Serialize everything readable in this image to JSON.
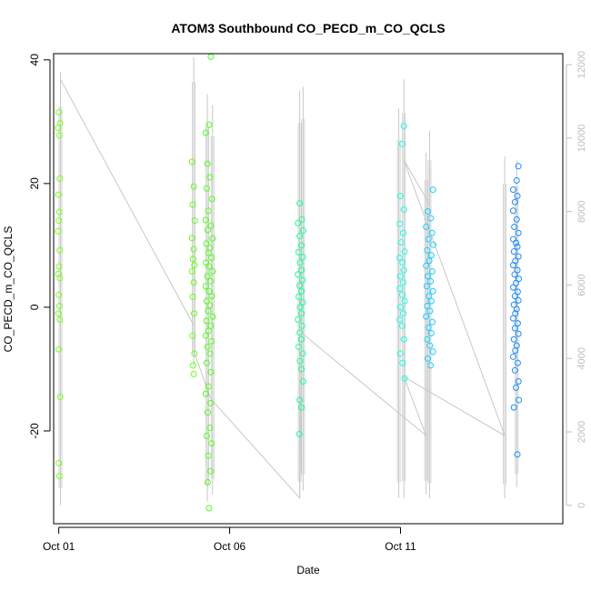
{
  "chart_data": {
    "type": "scatter",
    "title": "ATOM3 Southbound CO_PECD_m_CO_QCLS",
    "xlabel": "Date",
    "ylabel": "CO_PECD_m_CO_QCLS",
    "x_unit": "day of October",
    "xlim": [
      0.85,
      15.75
    ],
    "ylim": [
      -35,
      41
    ],
    "y2lim": [
      -500,
      12300
    ],
    "x_ticks": [
      {
        "x": 1,
        "label": "Oct 01"
      },
      {
        "x": 6,
        "label": "Oct 06"
      },
      {
        "x": 11,
        "label": "Oct 11"
      }
    ],
    "y_ticks": [
      {
        "y": -20,
        "label": "-20"
      },
      {
        "y": 0,
        "label": "0"
      },
      {
        "y": 20,
        "label": "20"
      },
      {
        "y": 40,
        "label": "40"
      }
    ],
    "y2_ticks": [
      {
        "y": 0,
        "label": "0"
      },
      {
        "y": 2000,
        "label": "2000"
      },
      {
        "y": 4000,
        "label": "4000"
      },
      {
        "y": 6000,
        "label": "6000"
      },
      {
        "y": 8000,
        "label": "8000"
      },
      {
        "y": 10000,
        "label": "10000"
      },
      {
        "y": 12000,
        "label": "12000"
      }
    ],
    "colors": {
      "axis": "#000000",
      "secondary_axis": "#bdbdbd",
      "altitude_trace": "#c8c8c8",
      "point_ramp": [
        "#7fff1a",
        "#33ff4d",
        "#1aff9a",
        "#1affe6",
        "#1acfff",
        "#1a8cff"
      ]
    },
    "altitude_trace": {
      "vertical_profiles": [
        {
          "x": 1.05,
          "y2_min": 0,
          "y2_max": 11800
        },
        {
          "x": 4.95,
          "y2_min": 3800,
          "y2_max": 12200
        },
        {
          "x": 5.35,
          "y2_min": 100,
          "y2_max": 11200
        },
        {
          "x": 5.5,
          "y2_min": 300,
          "y2_max": 10900
        },
        {
          "x": 8.05,
          "y2_min": 200,
          "y2_max": 11300
        },
        {
          "x": 8.15,
          "y2_min": 400,
          "y2_max": 11400
        },
        {
          "x": 10.95,
          "y2_min": 200,
          "y2_max": 10800
        },
        {
          "x": 11.1,
          "y2_min": 200,
          "y2_max": 11600
        },
        {
          "x": 11.75,
          "y2_min": 300,
          "y2_max": 9600
        },
        {
          "x": 11.85,
          "y2_min": 200,
          "y2_max": 10200
        },
        {
          "x": 14.05,
          "y2_min": 200,
          "y2_max": 9500
        },
        {
          "x": 14.4,
          "y2_min": 500,
          "y2_max": 9400
        }
      ],
      "transits": [
        [
          1.05,
          11600
        ],
        [
          4.95,
          4900
        ],
        [
          4.95,
          4200
        ],
        [
          5.45,
          2900
        ],
        [
          8.05,
          200
        ],
        [
          8.1,
          4700
        ],
        [
          11.75,
          1900
        ],
        [
          11.1,
          3500
        ],
        [
          14.05,
          1900
        ],
        [
          11.1,
          9400
        ],
        [
          11.85,
          8200
        ]
      ]
    },
    "series": [
      {
        "color": "#7fff1a",
        "points": [
          [
            1.0,
            31.5
          ],
          [
            1.04,
            29.8
          ],
          [
            0.98,
            29.0
          ],
          [
            1.02,
            27.8
          ],
          [
            1.03,
            20.8
          ],
          [
            0.99,
            18.2
          ],
          [
            1.02,
            15.4
          ],
          [
            1.0,
            14.0
          ],
          [
            0.98,
            12.3
          ],
          [
            1.03,
            9.2
          ],
          [
            1.01,
            6.6
          ],
          [
            0.99,
            5.4
          ],
          [
            1.03,
            4.7
          ],
          [
            1.0,
            2.0
          ],
          [
            1.02,
            0.2
          ],
          [
            0.99,
            -1.0
          ],
          [
            1.03,
            -2.0
          ],
          [
            1.0,
            -6.8
          ],
          [
            1.04,
            -14.5
          ],
          [
            1.0,
            -25.2
          ],
          [
            1.02,
            -27.3
          ]
        ]
      },
      {
        "color": "#66ff1a",
        "points": [
          [
            4.9,
            23.5
          ],
          [
            4.95,
            19.5
          ],
          [
            4.92,
            16.6
          ],
          [
            4.98,
            14.0
          ],
          [
            4.9,
            11.2
          ],
          [
            4.95,
            9.4
          ],
          [
            4.93,
            7.8
          ],
          [
            4.97,
            6.8
          ],
          [
            4.9,
            5.8
          ],
          [
            4.95,
            4.0
          ],
          [
            4.92,
            1.7
          ],
          [
            4.96,
            -1.0
          ],
          [
            4.92,
            -4.6
          ],
          [
            4.97,
            -7.5
          ],
          [
            4.93,
            -9.4
          ],
          [
            4.95,
            -10.8
          ]
        ]
      },
      {
        "color": "#4dff1a",
        "points": [
          [
            5.45,
            40.5
          ],
          [
            5.4,
            29.5
          ],
          [
            5.3,
            28.2
          ],
          [
            5.35,
            23.2
          ],
          [
            5.42,
            21.0
          ],
          [
            5.33,
            19.2
          ],
          [
            5.48,
            17.5
          ],
          [
            5.38,
            15.6
          ],
          [
            5.3,
            14.1
          ],
          [
            5.45,
            13.2
          ],
          [
            5.36,
            12.5
          ],
          [
            5.5,
            11.1
          ],
          [
            5.32,
            10.3
          ],
          [
            5.42,
            9.6
          ],
          [
            5.38,
            8.8
          ],
          [
            5.47,
            8.0
          ],
          [
            5.31,
            7.2
          ],
          [
            5.4,
            6.6
          ],
          [
            5.5,
            5.8
          ],
          [
            5.35,
            5.0
          ],
          [
            5.44,
            4.2
          ],
          [
            5.3,
            3.4
          ],
          [
            5.4,
            2.6
          ],
          [
            5.48,
            1.8
          ],
          [
            5.33,
            1.0
          ],
          [
            5.42,
            0.3
          ],
          [
            5.37,
            -0.6
          ],
          [
            5.5,
            -1.5
          ],
          [
            5.32,
            -2.2
          ],
          [
            5.45,
            -3.0
          ],
          [
            5.38,
            -3.8
          ],
          [
            5.3,
            -4.6
          ],
          [
            5.47,
            -5.5
          ],
          [
            5.35,
            -6.4
          ],
          [
            5.42,
            -7.5
          ],
          [
            5.33,
            -9.0
          ],
          [
            5.45,
            -10.5
          ],
          [
            5.38,
            -12.8
          ],
          [
            5.3,
            -14.0
          ],
          [
            5.44,
            -15.5
          ],
          [
            5.36,
            -17.0
          ],
          [
            5.42,
            -19.5
          ],
          [
            5.33,
            -20.8
          ],
          [
            5.47,
            -22.0
          ],
          [
            5.38,
            -24.0
          ],
          [
            5.44,
            -26.5
          ],
          [
            5.36,
            -28.3
          ],
          [
            5.4,
            -32.5
          ]
        ]
      },
      {
        "color": "#1aff9a",
        "points": [
          [
            8.05,
            16.8
          ],
          [
            8.12,
            14.2
          ],
          [
            8.0,
            13.6
          ],
          [
            8.15,
            12.4
          ],
          [
            8.05,
            11.5
          ],
          [
            8.1,
            10.0
          ],
          [
            8.02,
            8.9
          ],
          [
            8.14,
            8.1
          ],
          [
            8.06,
            7.2
          ],
          [
            8.1,
            6.0
          ],
          [
            8.0,
            5.3
          ],
          [
            8.13,
            4.4
          ],
          [
            8.05,
            3.5
          ],
          [
            8.1,
            2.6
          ],
          [
            8.02,
            1.7
          ],
          [
            8.14,
            0.8
          ],
          [
            8.06,
            0.0
          ],
          [
            8.1,
            -1.0
          ],
          [
            8.0,
            -2.0
          ],
          [
            8.12,
            -3.0
          ],
          [
            8.05,
            -4.1
          ],
          [
            8.1,
            -5.2
          ],
          [
            8.02,
            -6.4
          ],
          [
            8.14,
            -7.5
          ],
          [
            8.06,
            -8.7
          ],
          [
            8.1,
            -10.0
          ],
          [
            8.15,
            -12.0
          ],
          [
            8.05,
            -15.0
          ],
          [
            8.1,
            -16.2
          ],
          [
            8.04,
            -20.5
          ]
        ]
      },
      {
        "color": "#1affe6",
        "points": [
          [
            11.1,
            29.3
          ],
          [
            11.05,
            26.4
          ],
          [
            11.0,
            18.0
          ],
          [
            11.1,
            15.8
          ],
          [
            10.98,
            13.5
          ],
          [
            11.08,
            12.0
          ],
          [
            11.02,
            10.5
          ],
          [
            11.12,
            9.0
          ],
          [
            10.97,
            8.0
          ],
          [
            11.06,
            7.2
          ],
          [
            11.1,
            6.0
          ],
          [
            11.0,
            5.0
          ],
          [
            11.08,
            4.0
          ],
          [
            10.98,
            3.0
          ],
          [
            11.05,
            2.0
          ],
          [
            11.12,
            1.0
          ],
          [
            11.0,
            0.0
          ],
          [
            11.08,
            -1.0
          ],
          [
            10.97,
            -2.0
          ],
          [
            11.05,
            -3.0
          ],
          [
            11.1,
            -5.2
          ],
          [
            11.0,
            -7.5
          ],
          [
            11.06,
            -9.0
          ],
          [
            11.12,
            -11.5
          ]
        ]
      },
      {
        "color": "#1acfff",
        "points": [
          [
            11.95,
            19.0
          ],
          [
            11.8,
            15.5
          ],
          [
            11.88,
            14.4
          ],
          [
            11.75,
            13.0
          ],
          [
            11.92,
            12.0
          ],
          [
            11.82,
            11.0
          ],
          [
            11.96,
            10.1
          ],
          [
            11.78,
            9.2
          ],
          [
            11.9,
            8.4
          ],
          [
            11.84,
            7.5
          ],
          [
            11.75,
            6.7
          ],
          [
            11.93,
            5.8
          ],
          [
            11.8,
            5.0
          ],
          [
            11.88,
            4.2
          ],
          [
            11.77,
            3.4
          ],
          [
            11.95,
            2.6
          ],
          [
            11.83,
            1.8
          ],
          [
            11.9,
            1.0
          ],
          [
            11.78,
            0.2
          ],
          [
            11.86,
            -0.6
          ],
          [
            11.75,
            -1.5
          ],
          [
            11.93,
            -2.4
          ],
          [
            11.82,
            -3.3
          ],
          [
            11.9,
            -4.2
          ],
          [
            11.78,
            -5.2
          ],
          [
            11.86,
            -6.2
          ],
          [
            11.95,
            -7.2
          ],
          [
            11.8,
            -8.3
          ],
          [
            11.88,
            -9.4
          ]
        ]
      },
      {
        "color": "#1a8cff",
        "points": [
          [
            14.45,
            22.8
          ],
          [
            14.4,
            20.5
          ],
          [
            14.3,
            19.0
          ],
          [
            14.42,
            18.0
          ],
          [
            14.35,
            17.0
          ],
          [
            14.3,
            15.6
          ],
          [
            14.4,
            14.2
          ],
          [
            14.33,
            13.0
          ],
          [
            14.45,
            12.0
          ],
          [
            14.3,
            11.0
          ],
          [
            14.38,
            10.4
          ],
          [
            14.42,
            9.8
          ],
          [
            14.32,
            9.0
          ],
          [
            14.45,
            8.2
          ],
          [
            14.36,
            7.5
          ],
          [
            14.3,
            6.8
          ],
          [
            14.42,
            6.0
          ],
          [
            14.34,
            5.3
          ],
          [
            14.46,
            4.6
          ],
          [
            14.38,
            3.9
          ],
          [
            14.3,
            3.2
          ],
          [
            14.43,
            2.5
          ],
          [
            14.35,
            1.8
          ],
          [
            14.45,
            1.1
          ],
          [
            14.32,
            0.4
          ],
          [
            14.4,
            -0.3
          ],
          [
            14.36,
            -1.0
          ],
          [
            14.3,
            -1.8
          ],
          [
            14.43,
            -2.6
          ],
          [
            14.35,
            -3.4
          ],
          [
            14.45,
            -4.3
          ],
          [
            14.32,
            -5.2
          ],
          [
            14.4,
            -6.2
          ],
          [
            14.36,
            -7.0
          ],
          [
            14.3,
            -8.0
          ],
          [
            14.43,
            -9.0
          ],
          [
            14.35,
            -10.2
          ],
          [
            14.45,
            -12.0
          ],
          [
            14.38,
            -13.0
          ],
          [
            14.46,
            -15.0
          ],
          [
            14.32,
            -16.2
          ],
          [
            14.42,
            -23.8
          ]
        ]
      }
    ]
  }
}
